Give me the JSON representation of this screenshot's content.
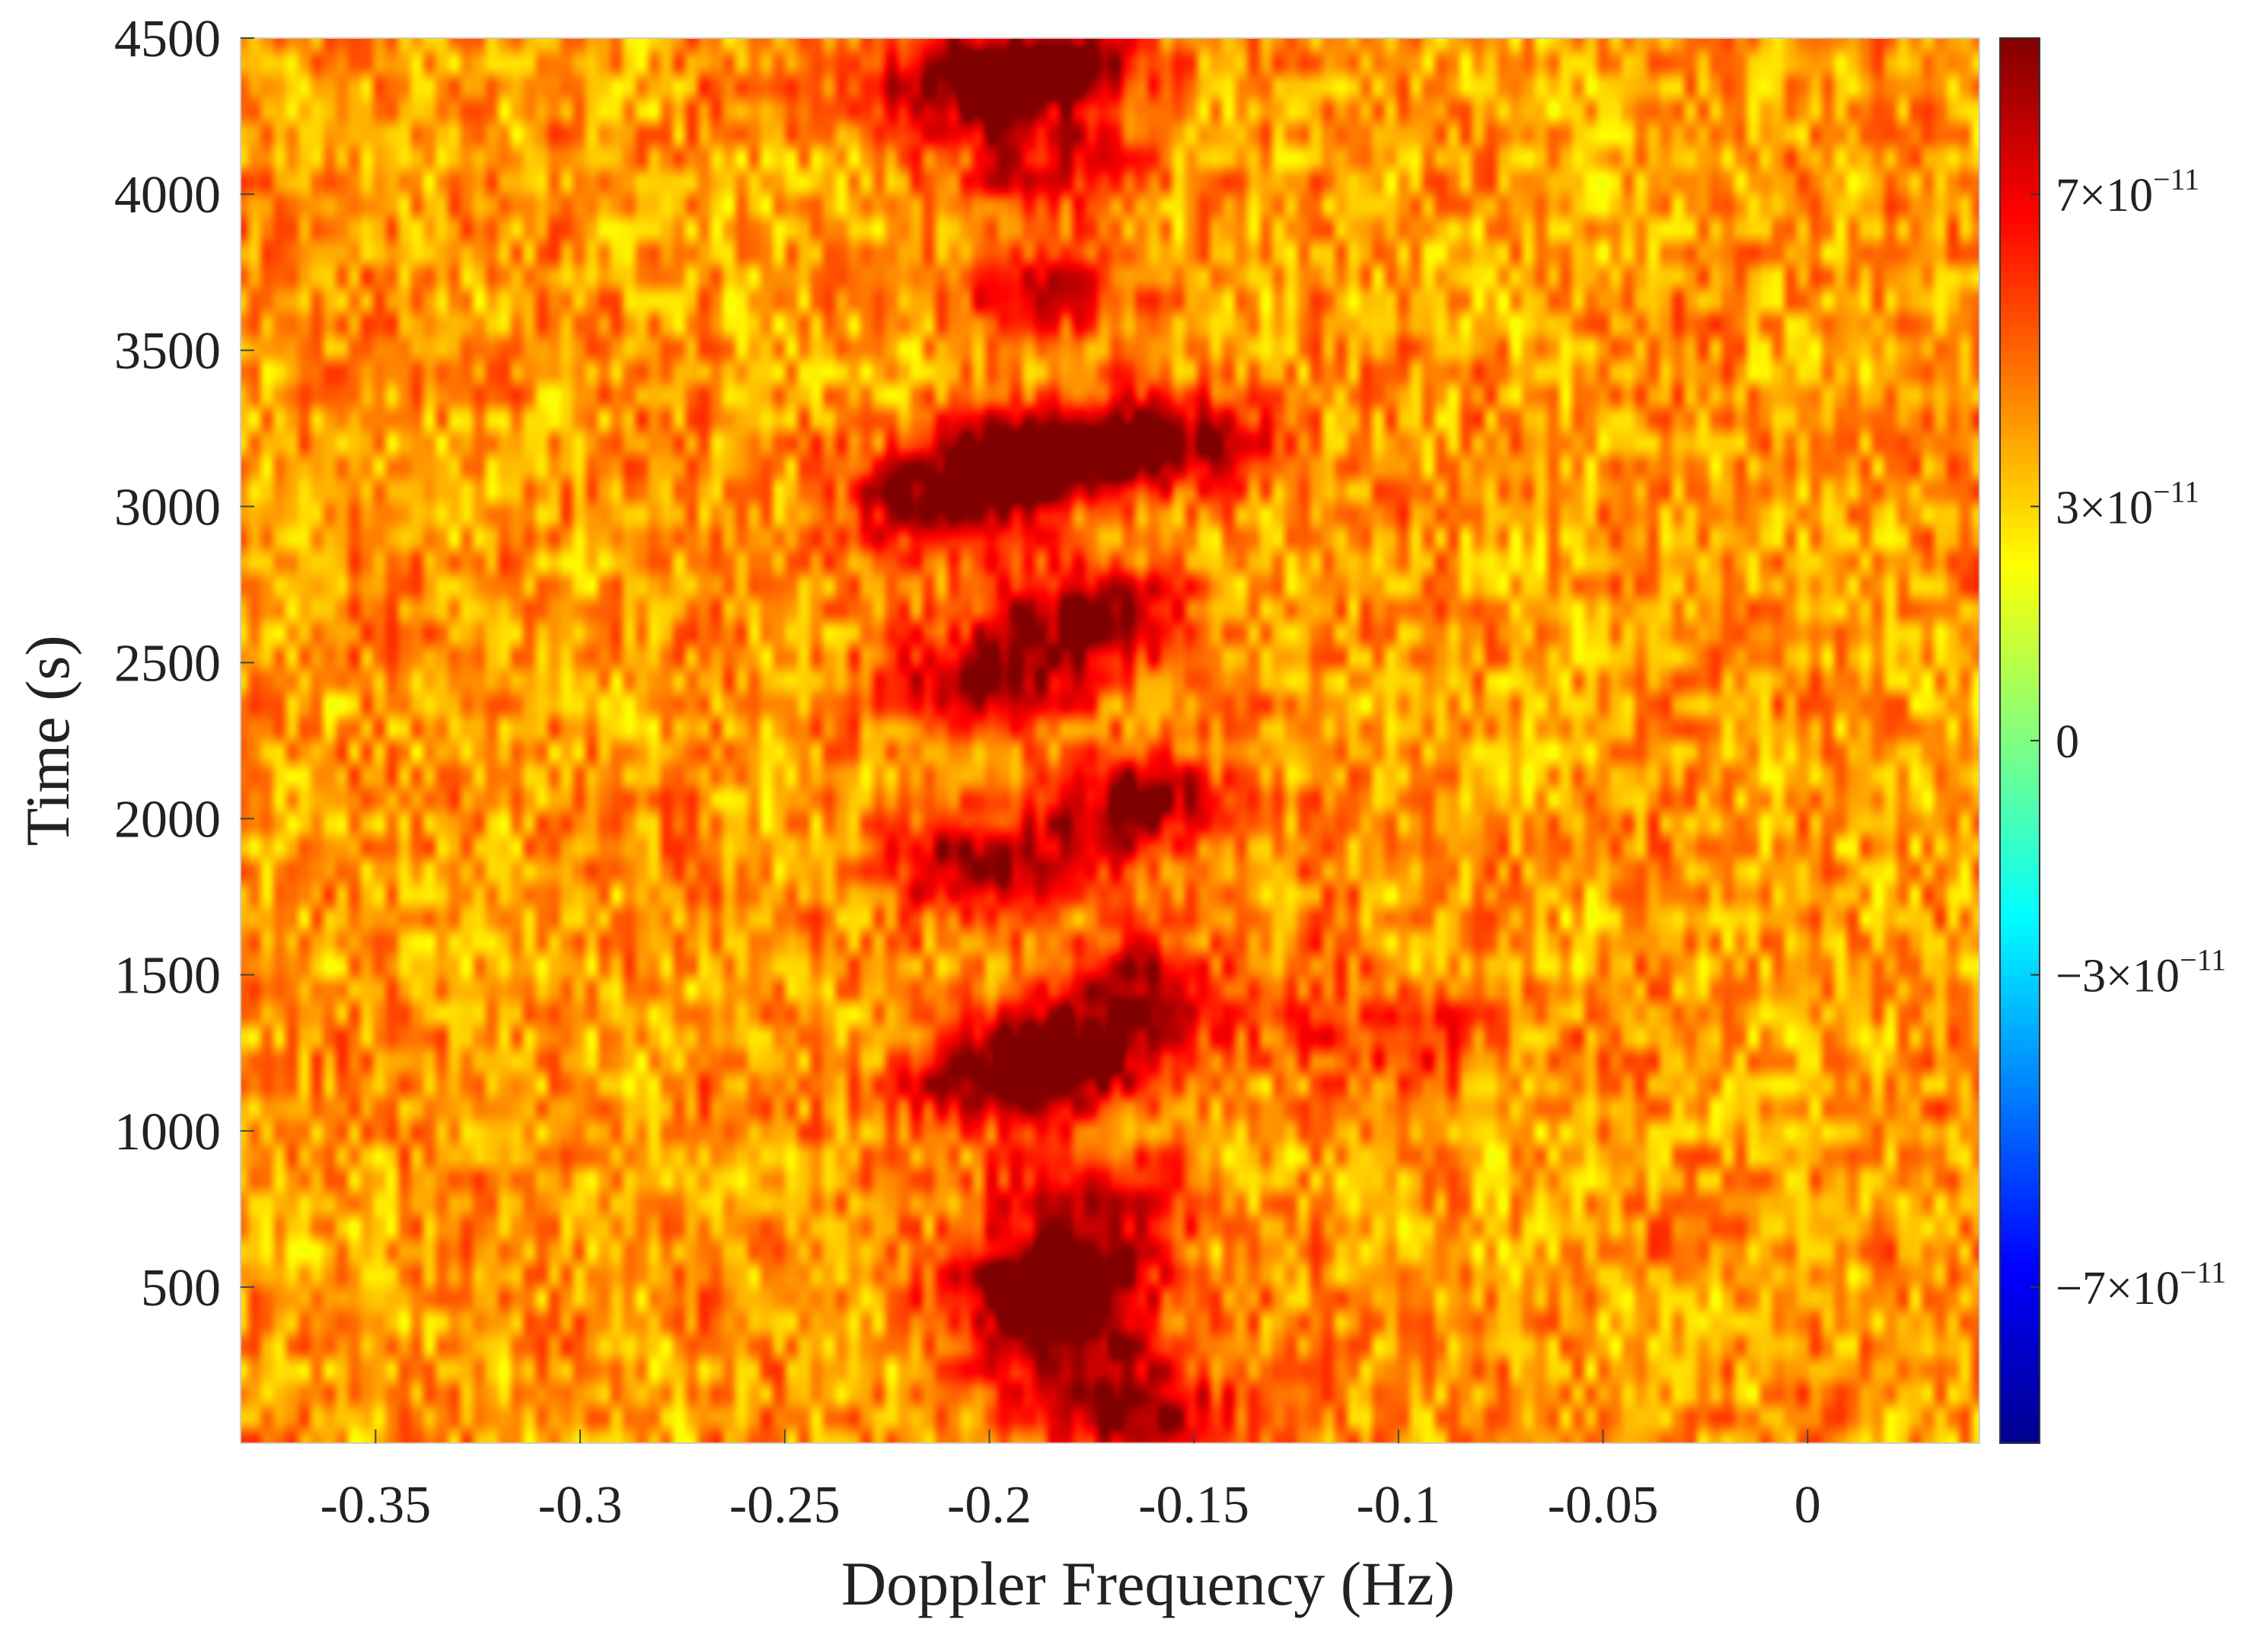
{
  "chart_data": {
    "type": "heatmap",
    "title": "",
    "xlabel": "Doppler Frequency (Hz)",
    "ylabel": "Time (s)",
    "xlim": [
      -0.383,
      0.042
    ],
    "ylim": [
      0,
      4500
    ],
    "x_ticks": [
      -0.35,
      -0.3,
      -0.25,
      -0.2,
      -0.15,
      -0.1,
      -0.05,
      0
    ],
    "x_tick_labels": [
      "-0.35",
      "-0.3",
      "-0.25",
      "-0.2",
      "-0.15",
      "-0.1",
      "-0.05",
      "0"
    ],
    "y_ticks": [
      500,
      1000,
      1500,
      2000,
      2500,
      3000,
      3500,
      4000,
      4500
    ],
    "y_tick_labels": [
      "500",
      "1000",
      "1500",
      "2000",
      "2500",
      "3000",
      "3500",
      "4000",
      "4500"
    ],
    "colormap": "jet",
    "colorbar": {
      "range": [
        -9e-11,
        9e-11
      ],
      "ticks": [
        {
          "value": 7e-11,
          "mantissa": "7",
          "exponent": "−11",
          "label": "7×10⁻¹¹"
        },
        {
          "value": 3e-11,
          "mantissa": "3",
          "exponent": "−11",
          "label": "3×10⁻¹¹"
        },
        {
          "value": 0,
          "label": "0"
        },
        {
          "value": -3e-11,
          "mantissa": "−3",
          "exponent": "−11",
          "label": "−3×10⁻¹¹"
        },
        {
          "value": -7e-11,
          "mantissa": "−7",
          "exponent": "−11",
          "label": "−7×10⁻¹¹"
        }
      ]
    },
    "background_level": 4e-11,
    "signal_blobs": [
      {
        "t": 4350,
        "f": -0.205,
        "amp": 5.5e-11
      },
      {
        "t": 4430,
        "f": -0.18,
        "amp": 4.5e-11
      },
      {
        "t": 4100,
        "f": -0.185,
        "amp": 3.5e-11
      },
      {
        "t": 3700,
        "f": -0.185,
        "amp": 3e-11
      },
      {
        "t": 3200,
        "f": -0.16,
        "amp": 6e-11
      },
      {
        "t": 3150,
        "f": -0.195,
        "amp": 5e-11
      },
      {
        "t": 3000,
        "f": -0.212,
        "amp": 5e-11
      },
      {
        "t": 2650,
        "f": -0.175,
        "amp": 5e-11
      },
      {
        "t": 2450,
        "f": -0.2,
        "amp": 5e-11
      },
      {
        "t": 2050,
        "f": -0.163,
        "amp": 5e-11
      },
      {
        "t": 1850,
        "f": -0.2,
        "amp": 5e-11
      },
      {
        "t": 1450,
        "f": -0.16,
        "amp": 4e-11
      },
      {
        "t": 1250,
        "f": -0.18,
        "amp": 6e-11
      },
      {
        "t": 1150,
        "f": -0.2,
        "amp": 4e-11
      },
      {
        "t": 1300,
        "f": -0.1,
        "amp": 2.5e-11
      },
      {
        "t": 800,
        "f": -0.175,
        "amp": 4e-11
      },
      {
        "t": 520,
        "f": -0.185,
        "amp": 7.5e-11
      },
      {
        "t": 300,
        "f": -0.18,
        "amp": 4.5e-11
      },
      {
        "t": 80,
        "f": -0.165,
        "amp": 5e-11
      }
    ]
  }
}
